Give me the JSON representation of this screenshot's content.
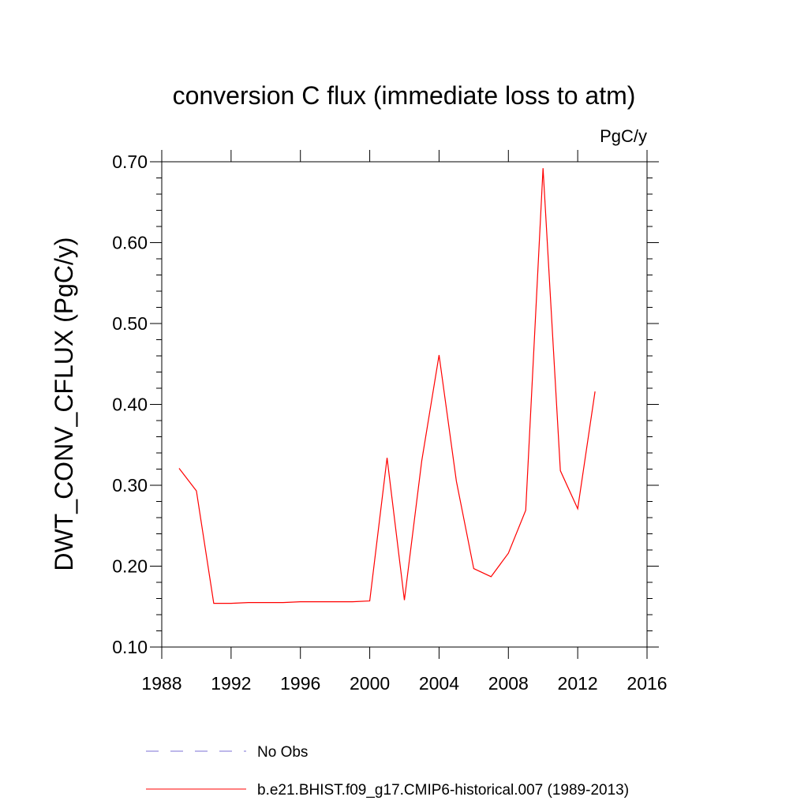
{
  "chart_data": {
    "type": "line",
    "title": "conversion C flux (immediate loss to atm)",
    "units": "PgC/y",
    "xlabel": "",
    "ylabel": "DWT_CONV_CFLUX  (PgC/y)",
    "xlim": [
      1988,
      2016
    ],
    "ylim": [
      0.1,
      0.7
    ],
    "xticks": [
      1988,
      1992,
      1996,
      2000,
      2004,
      2008,
      2012,
      2016
    ],
    "xtick_labels": [
      "1988",
      "1992",
      "1996",
      "2000",
      "2004",
      "2008",
      "2012",
      "2016"
    ],
    "yticks": [
      0.1,
      0.2,
      0.3,
      0.4,
      0.5,
      0.6,
      0.7
    ],
    "ytick_labels": [
      "0.10",
      "0.20",
      "0.30",
      "0.40",
      "0.50",
      "0.60",
      "0.70"
    ],
    "grid": false,
    "series": [
      {
        "name": "b.e21.BHIST.f09_g17.CMIP6-historical.007 (1989-2013)",
        "color": "#ff0000",
        "dash": "solid",
        "x": [
          1989,
          1990,
          1991,
          1992,
          1993,
          1994,
          1995,
          1996,
          1997,
          1998,
          1999,
          2000,
          2001,
          2002,
          2003,
          2004,
          2005,
          2006,
          2007,
          2008,
          2009,
          2010,
          2011,
          2012,
          2013
        ],
        "y": [
          0.321,
          0.293,
          0.154,
          0.154,
          0.155,
          0.155,
          0.155,
          0.156,
          0.156,
          0.156,
          0.156,
          0.157,
          0.334,
          0.158,
          0.33,
          0.461,
          0.305,
          0.197,
          0.187,
          0.216,
          0.269,
          0.692,
          0.318,
          0.271,
          0.416
        ]
      }
    ],
    "legend": [
      {
        "label": "No Obs",
        "color": "#7b6fd6",
        "dash": "dashed"
      },
      {
        "label": "b.e21.BHIST.f09_g17.CMIP6-historical.007 (1989-2013)",
        "color": "#ff0000",
        "dash": "solid"
      }
    ],
    "legend_position": "bottom"
  }
}
